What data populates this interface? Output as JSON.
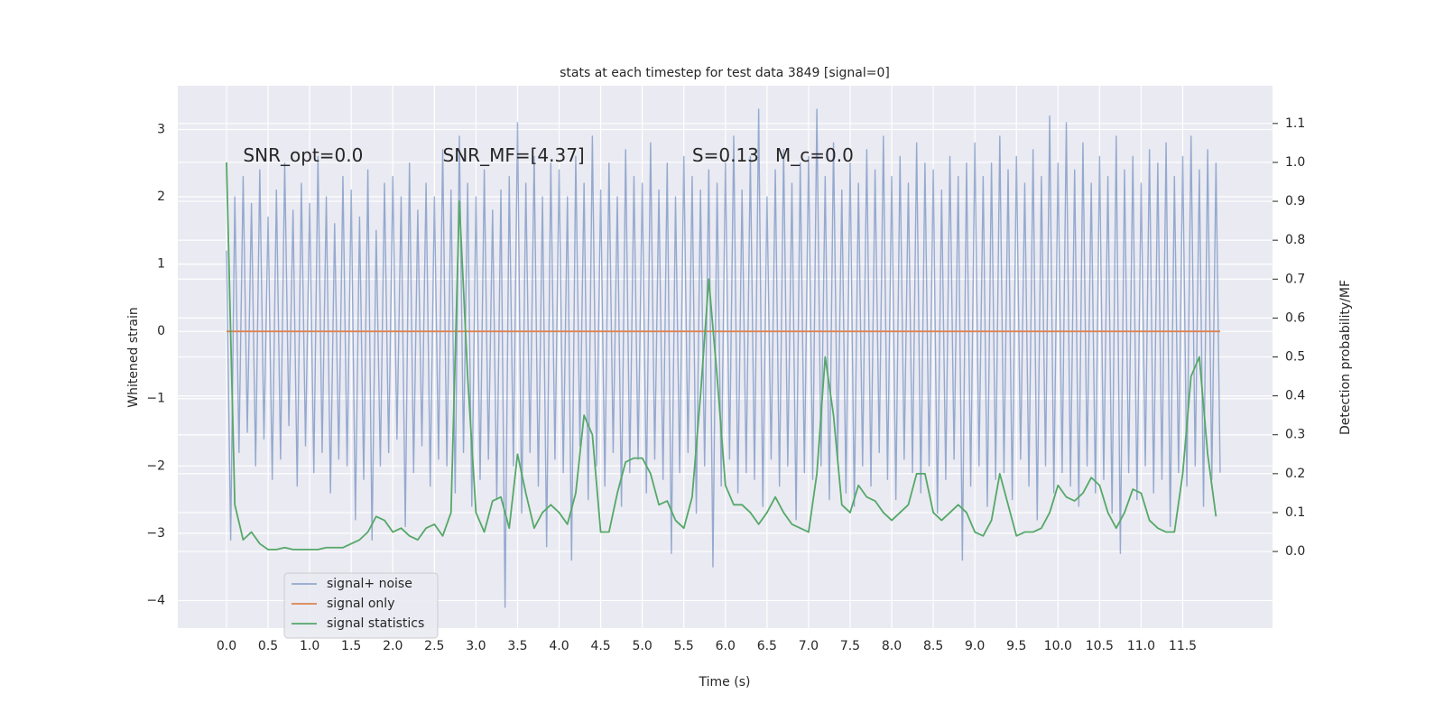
{
  "chart_data": {
    "type": "line",
    "title": "stats at each timestep for test data 3849 [signal=0]",
    "xlabel": "Time (s)",
    "ylabel": "Whitened strain",
    "y2label": "Detection probability/MF",
    "annotations": [
      {
        "text": "SNR_opt=0.0",
        "x": 0.2,
        "y": 2.6
      },
      {
        "text": "SNR_MF=[4.37]",
        "x": 2.6,
        "y": 2.6
      },
      {
        "text": "S=0.13",
        "x": 5.6,
        "y": 2.6
      },
      {
        "text": "M_c=0.0",
        "x": 6.6,
        "y": 2.6
      }
    ],
    "xlim": [
      -0.586,
      12.58
    ],
    "ylim": [
      -4.41,
      3.65
    ],
    "y2lim": [
      -0.197,
      1.197
    ],
    "xticks": [
      {
        "value": 0,
        "label": "0.0"
      },
      0.5,
      {
        "value": 1,
        "label": "1.0"
      },
      1.5,
      {
        "value": 2,
        "label": "2.0"
      },
      2.5,
      {
        "value": 3,
        "label": "3.0"
      },
      3.5,
      {
        "value": 4,
        "label": "4.0"
      },
      4.5,
      {
        "value": 5,
        "label": "5.0"
      },
      5.5,
      {
        "value": 6,
        "label": "6.0"
      },
      6.5,
      {
        "value": 7,
        "label": "7.0"
      },
      7.5,
      {
        "value": 8,
        "label": "8.0"
      },
      8.5,
      {
        "value": 9,
        "label": "9.0"
      },
      9.5,
      {
        "value": 10,
        "label": "10.0"
      },
      10.5,
      {
        "value": 11,
        "label": "11.0"
      },
      11.5
    ],
    "yticks": [
      {
        "value": -4,
        "label": "−4"
      },
      {
        "value": -3,
        "label": "−3"
      },
      {
        "value": -2,
        "label": "−2"
      },
      {
        "value": -1,
        "label": "−1"
      },
      0,
      1,
      2,
      3
    ],
    "y2ticks": [
      {
        "value": 0,
        "label": "0.0"
      },
      0.1,
      0.2,
      0.3,
      0.4,
      0.5,
      0.6,
      0.7,
      0.8,
      0.9,
      {
        "value": 1,
        "label": "1.0"
      },
      1.1
    ],
    "grid": true,
    "legend": "lower left",
    "series": [
      {
        "name": "signal+ noise",
        "color": "#4c72b0",
        "x": [
          0,
          0.05,
          0.1,
          0.15,
          0.2,
          0.25,
          0.3,
          0.35,
          0.4,
          0.45,
          0.5,
          0.55,
          0.6,
          0.65,
          0.7,
          0.75,
          0.8,
          0.85,
          0.9,
          0.95,
          1,
          1.05,
          1.1,
          1.15,
          1.2,
          1.25,
          1.3,
          1.35,
          1.4,
          1.45,
          1.5,
          1.55,
          1.6,
          1.65,
          1.7,
          1.75,
          1.8,
          1.85,
          1.9,
          1.95,
          2,
          2.05,
          2.1,
          2.15,
          2.2,
          2.25,
          2.3,
          2.35,
          2.4,
          2.45,
          2.5,
          2.55,
          2.6,
          2.65,
          2.7,
          2.75,
          2.8,
          2.85,
          2.9,
          2.95,
          3,
          3.05,
          3.1,
          3.15,
          3.2,
          3.25,
          3.3,
          3.35,
          3.4,
          3.45,
          3.5,
          3.55,
          3.6,
          3.65,
          3.7,
          3.75,
          3.8,
          3.85,
          3.9,
          3.95,
          4,
          4.05,
          4.1,
          4.15,
          4.2,
          4.25,
          4.3,
          4.35,
          4.4,
          4.45,
          4.5,
          4.55,
          4.6,
          4.65,
          4.7,
          4.75,
          4.8,
          4.85,
          4.9,
          4.95,
          5,
          5.05,
          5.1,
          5.15,
          5.2,
          5.25,
          5.3,
          5.35,
          5.4,
          5.45,
          5.5,
          5.55,
          5.6,
          5.65,
          5.7,
          5.75,
          5.8,
          5.85,
          5.9,
          5.95,
          6,
          6.05,
          6.1,
          6.15,
          6.2,
          6.25,
          6.3,
          6.35,
          6.4,
          6.45,
          6.5,
          6.55,
          6.6,
          6.65,
          6.7,
          6.75,
          6.8,
          6.85,
          6.9,
          6.95,
          7,
          7.05,
          7.1,
          7.15,
          7.2,
          7.25,
          7.3,
          7.35,
          7.4,
          7.45,
          7.5,
          7.55,
          7.6,
          7.65,
          7.7,
          7.75,
          7.8,
          7.85,
          7.9,
          7.95,
          8,
          8.05,
          8.1,
          8.15,
          8.2,
          8.25,
          8.3,
          8.35,
          8.4,
          8.45,
          8.5,
          8.55,
          8.6,
          8.65,
          8.7,
          8.75,
          8.8,
          8.85,
          8.9,
          8.95,
          9,
          9.05,
          9.1,
          9.15,
          9.2,
          9.25,
          9.3,
          9.35,
          9.4,
          9.45,
          9.5,
          9.55,
          9.6,
          9.65,
          9.7,
          9.75,
          9.8,
          9.85,
          9.9,
          9.95,
          10,
          10.05,
          10.1,
          10.15,
          10.2,
          10.25,
          10.3,
          10.35,
          10.4,
          10.45,
          10.5,
          10.55,
          10.6,
          10.65,
          10.7,
          10.75,
          10.8,
          10.85,
          10.9,
          10.95,
          11,
          11.05,
          11.1,
          11.15,
          11.2,
          11.25,
          11.3,
          11.35,
          11.4,
          11.45,
          11.5,
          11.55,
          11.6,
          11.65,
          11.7,
          11.75,
          11.8,
          11.85,
          11.9,
          11.95
        ],
        "values": [
          1.2,
          -3.1,
          2.0,
          -1.8,
          2.3,
          -1.5,
          1.9,
          -2.0,
          2.4,
          -1.6,
          1.7,
          -2.2,
          2.1,
          -1.9,
          2.5,
          -1.4,
          1.8,
          -2.3,
          2.2,
          -1.7,
          1.9,
          -2.1,
          2.6,
          -1.8,
          2.0,
          -2.4,
          1.6,
          -1.9,
          2.3,
          -2.0,
          2.1,
          -2.8,
          1.7,
          -2.2,
          2.4,
          -3.1,
          1.5,
          -2.0,
          2.2,
          -1.8,
          2.3,
          -1.6,
          2.0,
          -2.9,
          2.5,
          -2.1,
          1.8,
          -1.7,
          2.2,
          -2.3,
          2.0,
          -1.9,
          2.7,
          -2.0,
          2.1,
          -2.4,
          2.9,
          -1.8,
          2.2,
          -2.6,
          2.0,
          -2.2,
          2.4,
          -1.9,
          1.8,
          -2.5,
          2.1,
          -4.1,
          2.3,
          -2.0,
          3.1,
          -2.7,
          2.2,
          -1.8,
          2.6,
          -2.3,
          2.0,
          -3.2,
          2.5,
          -1.9,
          2.4,
          -2.1,
          2.0,
          -3.4,
          2.6,
          -1.7,
          2.2,
          -2.5,
          2.9,
          -2.0,
          2.1,
          -2.3,
          2.5,
          -1.8,
          2.0,
          -2.6,
          2.7,
          -2.1,
          2.3,
          -1.9,
          2.2,
          -2.4,
          2.8,
          -1.9,
          2.1,
          -2.2,
          2.5,
          -3.3,
          2.0,
          -2.1,
          2.6,
          -1.8,
          2.3,
          -2.7,
          2.1,
          -2.0,
          2.4,
          -3.5,
          2.2,
          -2.3,
          2.5,
          -1.9,
          2.9,
          -2.4,
          2.1,
          -2.1,
          2.6,
          -2.2,
          3.3,
          -2.6,
          2.0,
          -1.9,
          2.4,
          -2.3,
          2.7,
          -2.0,
          2.2,
          -2.8,
          2.5,
          -2.1,
          2.6,
          -2.2,
          3.3,
          -2.0,
          2.3,
          -2.5,
          2.8,
          -1.9,
          2.1,
          -2.4,
          2.5,
          -2.6,
          2.2,
          -2.0,
          2.7,
          -2.3,
          2.4,
          -1.8,
          2.9,
          -2.2,
          2.3,
          -2.5,
          2.6,
          -1.9,
          2.2,
          -2.1,
          2.8,
          -2.4,
          2.5,
          -2.0,
          2.4,
          -2.7,
          2.1,
          -2.2,
          2.6,
          -1.9,
          2.3,
          -3.4,
          2.5,
          -2.3,
          2.8,
          -2.0,
          2.3,
          -2.6,
          2.5,
          -2.2,
          2.9,
          -2.1,
          2.4,
          -2.5,
          2.6,
          -1.9,
          2.2,
          -2.3,
          2.7,
          -2.8,
          2.3,
          -2.0,
          3.2,
          -2.4,
          2.5,
          -2.1,
          3.1,
          -2.3,
          2.4,
          -2.6,
          2.8,
          -2.0,
          2.2,
          -2.4,
          2.6,
          -2.2,
          2.3,
          -2.7,
          2.9,
          -3.3,
          2.4,
          -2.1,
          2.6,
          -2.5,
          2.2,
          -2.0,
          2.7,
          -2.4,
          2.5,
          -2.2,
          2.8,
          -2.9,
          2.3,
          -2.1,
          2.6,
          -2.3,
          2.9,
          -2.0,
          2.4,
          -2.6,
          2.7,
          -2.2,
          2.5,
          -2.1
        ]
      },
      {
        "name": "signal only",
        "color": "#dd8452",
        "x": [
          0,
          11.95
        ],
        "values": [
          0,
          0
        ]
      },
      {
        "name": "signal statistics",
        "color": "#55a868",
        "axis": "y2",
        "x": [
          0,
          0.1,
          0.2,
          0.3,
          0.4,
          0.5,
          0.6,
          0.7,
          0.8,
          0.9,
          1,
          1.1,
          1.2,
          1.3,
          1.4,
          1.5,
          1.6,
          1.7,
          1.8,
          1.9,
          2,
          2.1,
          2.2,
          2.3,
          2.4,
          2.5,
          2.6,
          2.7,
          2.8,
          2.9,
          3,
          3.1,
          3.2,
          3.3,
          3.4,
          3.5,
          3.6,
          3.7,
          3.8,
          3.9,
          4,
          4.1,
          4.2,
          4.3,
          4.4,
          4.5,
          4.6,
          4.7,
          4.8,
          4.9,
          5,
          5.1,
          5.2,
          5.3,
          5.4,
          5.5,
          5.6,
          5.7,
          5.8,
          5.9,
          6,
          6.1,
          6.2,
          6.3,
          6.4,
          6.5,
          6.6,
          6.7,
          6.8,
          6.9,
          7,
          7.1,
          7.2,
          7.3,
          7.4,
          7.5,
          7.6,
          7.7,
          7.8,
          7.9,
          8,
          8.1,
          8.2,
          8.3,
          8.4,
          8.5,
          8.6,
          8.7,
          8.8,
          8.9,
          9,
          9.1,
          9.2,
          9.3,
          9.4,
          9.5,
          9.6,
          9.7,
          9.8,
          9.9,
          10,
          10.1,
          10.2,
          10.3,
          10.4,
          10.5,
          10.6,
          10.7,
          10.8,
          10.9,
          11,
          11.1,
          11.2,
          11.3,
          11.4,
          11.5,
          11.6,
          11.7,
          11.8,
          11.9
        ],
        "values": [
          1.0,
          0.12,
          0.03,
          0.05,
          0.02,
          0.005,
          0.005,
          0.01,
          0.005,
          0.005,
          0.005,
          0.005,
          0.01,
          0.01,
          0.01,
          0.02,
          0.03,
          0.05,
          0.09,
          0.08,
          0.05,
          0.06,
          0.04,
          0.03,
          0.06,
          0.07,
          0.04,
          0.1,
          0.9,
          0.45,
          0.1,
          0.05,
          0.13,
          0.14,
          0.06,
          0.25,
          0.15,
          0.06,
          0.1,
          0.12,
          0.1,
          0.07,
          0.15,
          0.35,
          0.3,
          0.05,
          0.05,
          0.15,
          0.23,
          0.24,
          0.24,
          0.2,
          0.12,
          0.13,
          0.08,
          0.06,
          0.14,
          0.4,
          0.7,
          0.45,
          0.17,
          0.12,
          0.12,
          0.1,
          0.07,
          0.1,
          0.14,
          0.1,
          0.07,
          0.06,
          0.05,
          0.2,
          0.5,
          0.35,
          0.12,
          0.1,
          0.17,
          0.14,
          0.13,
          0.1,
          0.08,
          0.1,
          0.12,
          0.2,
          0.2,
          0.1,
          0.08,
          0.1,
          0.12,
          0.1,
          0.05,
          0.04,
          0.08,
          0.2,
          0.12,
          0.04,
          0.05,
          0.05,
          0.06,
          0.1,
          0.17,
          0.14,
          0.13,
          0.15,
          0.19,
          0.17,
          0.1,
          0.06,
          0.1,
          0.16,
          0.15,
          0.08,
          0.06,
          0.05,
          0.05,
          0.2,
          0.45,
          0.5,
          0.25,
          0.09
        ]
      }
    ]
  }
}
